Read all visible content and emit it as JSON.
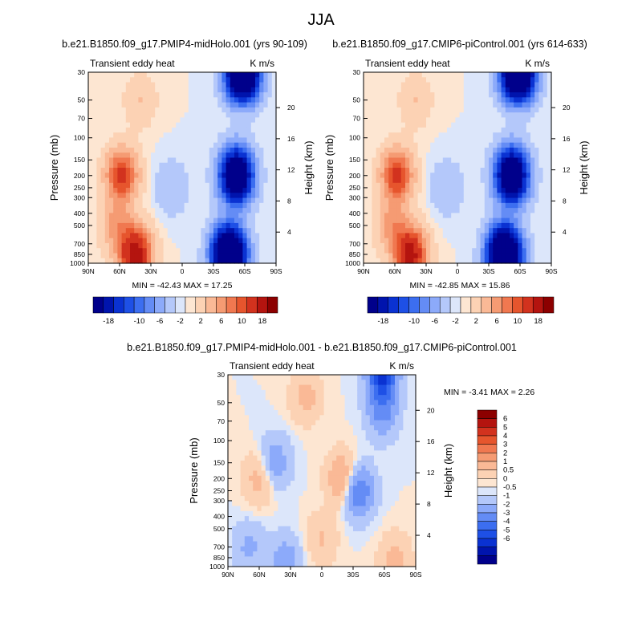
{
  "page_title": "JJA",
  "colors": {
    "neg": [
      "#00008b",
      "#0014ad",
      "#0a32d2",
      "#1e50e6",
      "#3c6ef0",
      "#648cf5",
      "#8caafa",
      "#b4c8fa",
      "#dce6fa"
    ],
    "pos": [
      "#fde6d2",
      "#fcd2b4",
      "#fab996",
      "#f59b73",
      "#f07850",
      "#e6552d",
      "#d2321e",
      "#b4140f",
      "#8c0000"
    ]
  },
  "chart_data": [
    {
      "type": "heatmap",
      "title": "b.e21.B1850.f09_g17.PMIP4-midHolo.001 (yrs 90-109)",
      "left_label": "Transient eddy heat",
      "right_label": "K m/s",
      "ylabel": "Pressure (mb)",
      "ylabel_right": "Height (km)",
      "x_ticks": [
        "90N",
        "60N",
        "30N",
        "0",
        "30S",
        "60S",
        "90S"
      ],
      "y_ticks": [
        "30",
        "50",
        "70",
        "100",
        "150",
        "200",
        "250",
        "300",
        "400",
        "500",
        "700",
        "850",
        "1000"
      ],
      "height_ticks": [
        "20",
        "16",
        "12",
        "8",
        "4"
      ],
      "stats": "MIN = -42.43  MAX = 17.25",
      "colorbar_labels": [
        "-18",
        "-10",
        "-6",
        "-2",
        "2",
        "6",
        "10",
        "18"
      ],
      "field": {
        "scale": 1,
        "features": [
          {
            "lat": 45,
            "p": 850,
            "amp": 17
          },
          {
            "lat": 58,
            "p": 200,
            "amp": 11
          },
          {
            "lat": 62,
            "p": 500,
            "amp": 5
          },
          {
            "lat": -45,
            "p": 850,
            "amp": -40
          },
          {
            "lat": -52,
            "p": 200,
            "amp": -30
          },
          {
            "lat": -58,
            "p": 30,
            "amp": -40
          },
          {
            "lat": 10,
            "p": 250,
            "amp": -2
          },
          {
            "lat": 40,
            "p": 50,
            "amp": 2
          }
        ]
      }
    },
    {
      "type": "heatmap",
      "title": "b.e21.B1850.f09_g17.CMIP6-piControl.001 (yrs 614-633)",
      "left_label": "Transient eddy heat",
      "right_label": "K m/s",
      "ylabel": "Pressure (mb)",
      "ylabel_right": "Height (km)",
      "x_ticks": [
        "90N",
        "60N",
        "30N",
        "0",
        "30S",
        "60S",
        "90S"
      ],
      "y_ticks": [
        "30",
        "50",
        "70",
        "100",
        "150",
        "200",
        "250",
        "300",
        "400",
        "500",
        "700",
        "850",
        "1000"
      ],
      "height_ticks": [
        "20",
        "16",
        "12",
        "8",
        "4"
      ],
      "stats": "MIN = -42.85  MAX = 15.86",
      "colorbar_labels": [
        "-18",
        "-10",
        "-6",
        "-2",
        "2",
        "6",
        "10",
        "18"
      ],
      "field": {
        "scale": 1,
        "features": [
          {
            "lat": 45,
            "p": 850,
            "amp": 16
          },
          {
            "lat": 58,
            "p": 200,
            "amp": 11
          },
          {
            "lat": 62,
            "p": 500,
            "amp": 5
          },
          {
            "lat": -45,
            "p": 850,
            "amp": -41
          },
          {
            "lat": -52,
            "p": 200,
            "amp": -30
          },
          {
            "lat": -58,
            "p": 30,
            "amp": -40
          },
          {
            "lat": 10,
            "p": 250,
            "amp": -2
          },
          {
            "lat": 40,
            "p": 50,
            "amp": 2
          }
        ]
      }
    },
    {
      "type": "heatmap",
      "title": "b.e21.B1850.f09_g17.PMIP4-midHolo.001 - b.e21.B1850.f09_g17.CMIP6-piControl.001",
      "left_label": "Transient eddy heat",
      "right_label": "K m/s",
      "ylabel": "Pressure (mb)",
      "ylabel_right": "Height (km)",
      "x_ticks": [
        "90N",
        "60N",
        "30N",
        "0",
        "30S",
        "60S",
        "90S"
      ],
      "y_ticks": [
        "30",
        "50",
        "70",
        "100",
        "150",
        "200",
        "250",
        "300",
        "400",
        "500",
        "700",
        "850",
        "1000"
      ],
      "height_ticks": [
        "20",
        "16",
        "12",
        "8",
        "4"
      ],
      "stats": "MIN =  -3.41  MAX =   2.26",
      "colorbar_labels": [
        "6",
        "5",
        "4",
        "3",
        "2",
        "1",
        "0.5",
        "0",
        "-0.5",
        "-1",
        "-2",
        "-3",
        "-4",
        "-5",
        "-6"
      ],
      "field": {
        "scale": 0.33,
        "features": [
          {
            "lat": -58,
            "p": 30,
            "amp": -3.4
          },
          {
            "lat": -58,
            "p": 60,
            "amp": -1.5
          },
          {
            "lat": -35,
            "p": 250,
            "amp": -2.2
          },
          {
            "lat": -20,
            "p": 200,
            "amp": 1.6
          },
          {
            "lat": 15,
            "p": 45,
            "amp": 0.9
          },
          {
            "lat": 60,
            "p": 200,
            "amp": 1.0
          },
          {
            "lat": 45,
            "p": 150,
            "amp": -1.2
          },
          {
            "lat": 35,
            "p": 900,
            "amp": -1.1
          },
          {
            "lat": 0,
            "p": 600,
            "amp": 0.7
          },
          {
            "lat": -70,
            "p": 900,
            "amp": 1.0
          },
          {
            "lat": 70,
            "p": 700,
            "amp": -0.8
          }
        ]
      }
    }
  ]
}
